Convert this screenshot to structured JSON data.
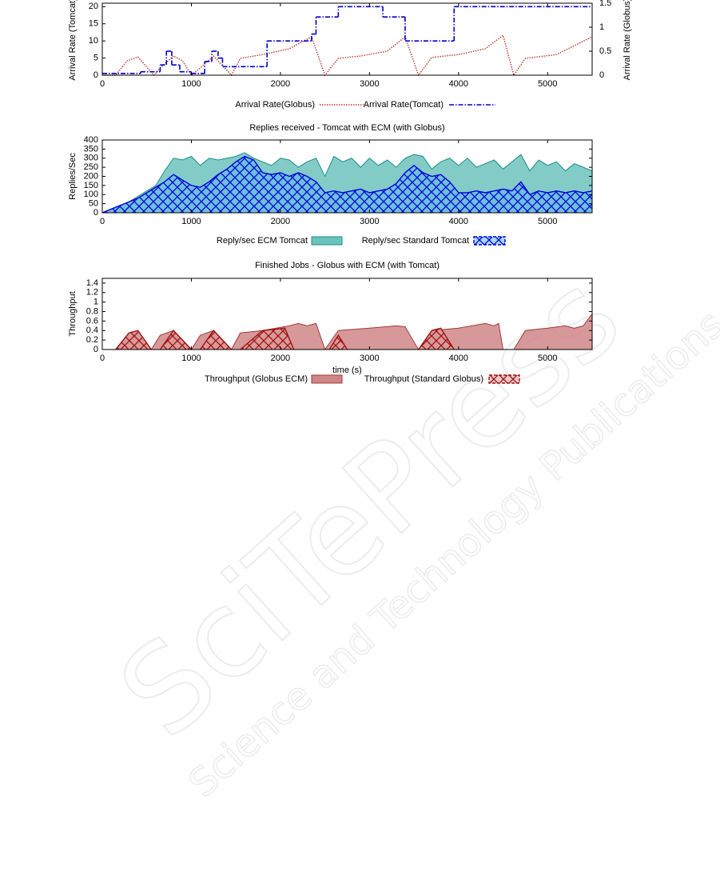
{
  "watermark": {
    "title": "SciTePress",
    "subtitle": "Science and Technology Publications"
  },
  "chart_data": [
    {
      "type": "line",
      "ylabel": "Arrival Rate (Tomcat)",
      "y2label": "Arrival Rate (Globus)",
      "xlim": [
        0,
        5500
      ],
      "xticks": [
        0,
        1000,
        2000,
        3000,
        4000,
        5000
      ],
      "ylim": [
        0,
        21
      ],
      "yticks": [
        0,
        5,
        10,
        15,
        20
      ],
      "y2lim": [
        0,
        1.5
      ],
      "y2ticks": [
        0,
        0.5,
        1,
        1.5
      ],
      "series": [
        {
          "name": "Arrival Rate(Globus)",
          "color": "#c0392b",
          "axis": "y2",
          "line_style": "dotted",
          "x": [
            0,
            150,
            280,
            400,
            580,
            650,
            800,
            900,
            1000,
            1100,
            1250,
            1350,
            1450,
            1550,
            1800,
            2100,
            2350,
            2500,
            2650,
            2900,
            3200,
            3400,
            3550,
            3700,
            4000,
            4300,
            4500,
            4620,
            4750,
            5100,
            5500
          ],
          "values": [
            0,
            0,
            0.3,
            0.38,
            0,
            0.15,
            0.4,
            0.3,
            0,
            0.15,
            0.4,
            0.2,
            0,
            0.35,
            0.43,
            0.55,
            0.8,
            0,
            0.35,
            0.4,
            0.5,
            0.8,
            0,
            0.37,
            0.43,
            0.55,
            0.83,
            0,
            0.35,
            0.43,
            0.8
          ]
        },
        {
          "name": "Arrival Rate(Tomcat)",
          "color": "#0000cc",
          "line_style": "dash-dot",
          "step": true,
          "x": [
            0,
            430,
            650,
            720,
            780,
            870,
            1000,
            1150,
            1230,
            1300,
            1350,
            1850,
            2350,
            2400,
            2650,
            3150,
            3400,
            3950,
            5500
          ],
          "values": [
            0.5,
            1,
            3,
            7,
            3,
            1,
            0.5,
            4,
            7,
            5,
            2.5,
            10,
            12,
            17,
            20,
            17,
            10,
            20,
            20
          ]
        }
      ]
    },
    {
      "type": "area",
      "title": "Replies received - Tomcat with ECM (with Globus)",
      "ylabel": "Replies/Sec",
      "xlim": [
        0,
        5500
      ],
      "xticks": [
        0,
        1000,
        2000,
        3000,
        4000,
        5000
      ],
      "ylim": [
        0,
        400
      ],
      "yticks": [
        0,
        50,
        100,
        150,
        200,
        250,
        300,
        350,
        400
      ],
      "x": [
        0,
        100,
        200,
        300,
        400,
        500,
        600,
        700,
        800,
        900,
        1000,
        1100,
        1200,
        1300,
        1400,
        1500,
        1600,
        1700,
        1800,
        1900,
        2000,
        2100,
        2200,
        2300,
        2400,
        2500,
        2600,
        2700,
        2800,
        2900,
        3000,
        3100,
        3200,
        3300,
        3400,
        3500,
        3600,
        3700,
        3800,
        3900,
        4000,
        4100,
        4200,
        4300,
        4400,
        4500,
        4600,
        4700,
        4800,
        4900,
        5000,
        5100,
        5200,
        5300,
        5400,
        5500
      ],
      "series": [
        {
          "name": "Reply/sec ECM Tomcat",
          "color": "#1a8f88",
          "fill": "#6cc2bc",
          "values": [
            0,
            20,
            40,
            60,
            90,
            120,
            150,
            230,
            300,
            290,
            310,
            260,
            300,
            290,
            300,
            310,
            330,
            300,
            280,
            260,
            300,
            290,
            250,
            280,
            300,
            200,
            310,
            280,
            300,
            250,
            300,
            260,
            290,
            250,
            300,
            320,
            310,
            240,
            280,
            300,
            260,
            300,
            250,
            270,
            290,
            240,
            280,
            320,
            230,
            290,
            260,
            280,
            230,
            270,
            250,
            230
          ]
        },
        {
          "name": "Reply/sec Standard Tomcat",
          "color": "#0000dd",
          "fill": "#5fb6ea",
          "hatch": true,
          "values": [
            0,
            20,
            40,
            60,
            80,
            110,
            140,
            170,
            210,
            180,
            150,
            140,
            170,
            210,
            240,
            280,
            310,
            290,
            220,
            210,
            220,
            200,
            220,
            200,
            170,
            110,
            120,
            110,
            120,
            130,
            110,
            120,
            130,
            160,
            220,
            260,
            220,
            200,
            210,
            170,
            110,
            110,
            120,
            110,
            120,
            130,
            120,
            170,
            100,
            120,
            110,
            120,
            110,
            120,
            110,
            120
          ]
        }
      ]
    },
    {
      "type": "area",
      "title": "Finished Jobs - Globus with ECM (with Tomcat)",
      "xlabel": "time (s)",
      "ylabel": "Throughput",
      "xlim": [
        0,
        5500
      ],
      "xticks": [
        0,
        1000,
        2000,
        3000,
        4000,
        5000
      ],
      "ylim": [
        0,
        1.5
      ],
      "yticks": [
        0,
        0.2,
        0.4,
        0.6,
        0.8,
        1,
        1.2,
        1.4
      ],
      "series": [
        {
          "name": "Throughput (Globus ECM)",
          "color": "#a33a3a",
          "fill": "#cf8686",
          "x": [
            0,
            150,
            300,
            400,
            550,
            650,
            800,
            900,
            1000,
            1100,
            1250,
            1350,
            1450,
            1550,
            1800,
            2100,
            2200,
            2300,
            2400,
            2500,
            2650,
            3000,
            3300,
            3400,
            3550,
            3700,
            4000,
            4300,
            4400,
            4450,
            4500,
            4620,
            4750,
            5000,
            5200,
            5300,
            5400,
            5500
          ],
          "values": [
            0,
            0,
            0.35,
            0.4,
            0,
            0.3,
            0.4,
            0.2,
            0,
            0.3,
            0.4,
            0.2,
            0,
            0.35,
            0.4,
            0.5,
            0.55,
            0.5,
            0.55,
            0,
            0.4,
            0.45,
            0.5,
            0.48,
            0,
            0.4,
            0.45,
            0.55,
            0.5,
            0.55,
            0,
            0,
            0.4,
            0.45,
            0.5,
            0.45,
            0.5,
            0.75
          ]
        },
        {
          "name": "Throughput (Standard Globus)",
          "color": "#a01010",
          "fill": "#d99a9a",
          "hatch": true,
          "x": [
            150,
            300,
            400,
            550,
            600,
            650,
            800,
            900,
            1000,
            1050,
            1100,
            1250,
            1450,
            1500,
            1550,
            1800,
            2050,
            2150,
            2200,
            2550,
            2650,
            2750,
            2800,
            3550,
            3700,
            3800,
            3950
          ],
          "values": [
            0,
            0.35,
            0.4,
            0,
            null,
            0,
            0.4,
            0.2,
            0,
            null,
            0,
            0.4,
            0,
            null,
            0,
            0.4,
            0.45,
            0,
            null,
            0,
            0.3,
            0,
            null,
            0,
            0.4,
            0.45,
            0
          ]
        }
      ]
    }
  ]
}
